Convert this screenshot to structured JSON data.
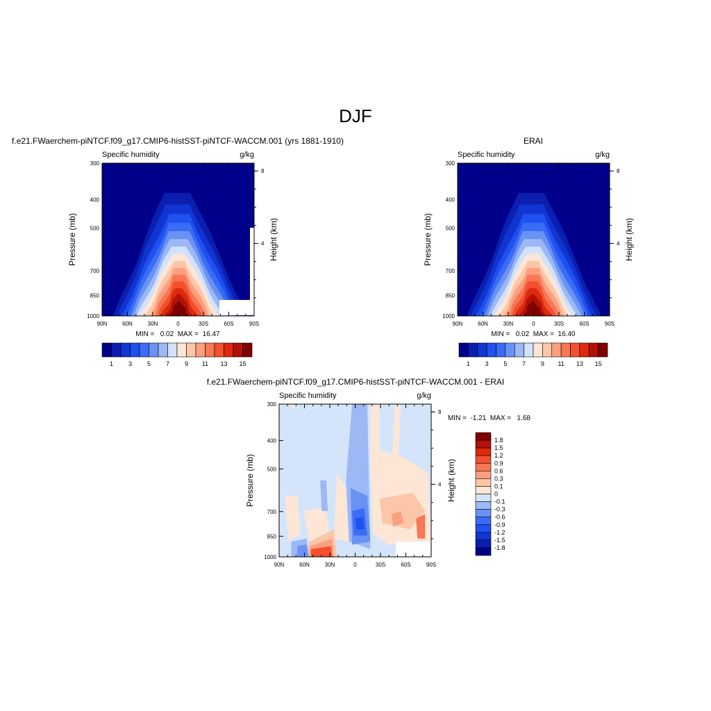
{
  "title": "DJF",
  "chart_data": [
    {
      "type": "heatmap",
      "title": "f.e21.FWaerchem-piNTCF.f09_g17.CMIP6-histSST-piNTCF-WACCM.001 (yrs 1881-1910)",
      "left_label": "Specific humidity",
      "right_label": "g/kg",
      "ylabel": "Pressure (mb)",
      "y2label": "Height (km)",
      "x_ticks": [
        "90N",
        "60N",
        "30N",
        "0",
        "30S",
        "60S",
        "90S"
      ],
      "y_ticks": [
        "300",
        "400",
        "500",
        "700",
        "850",
        "1000"
      ],
      "y_tick_values": [
        300,
        400,
        500,
        700,
        850,
        1000
      ],
      "y2_ticks": [
        "8",
        "4"
      ],
      "y2_tick_values": [
        8,
        4
      ],
      "stats": "MIN =   0.02  MAX =  16.47",
      "min": 0.02,
      "max": 16.47,
      "colorbar_labels": [
        "1",
        "3",
        "5",
        "7",
        "9",
        "11",
        "13",
        "15"
      ],
      "colorbar_levels": [
        1,
        2,
        3,
        4,
        5,
        6,
        7,
        8,
        9,
        10,
        11,
        12,
        13,
        14,
        15
      ],
      "peak_value": 16.47
    },
    {
      "type": "heatmap",
      "title": "ERAI",
      "left_label": "Specific humidity",
      "right_label": "g/kg",
      "ylabel": "Pressure (mb)",
      "y2label": "Height (km)",
      "x_ticks": [
        "90N",
        "60N",
        "30N",
        "0",
        "30S",
        "60S",
        "90S"
      ],
      "y_ticks": [
        "300",
        "400",
        "500",
        "700",
        "850",
        "1000"
      ],
      "y_tick_values": [
        300,
        400,
        500,
        700,
        850,
        1000
      ],
      "y2_ticks": [
        "8",
        "4"
      ],
      "y2_tick_values": [
        8,
        4
      ],
      "stats": "MIN =   0.02  MAX =  16.40",
      "min": 0.02,
      "max": 16.4,
      "colorbar_labels": [
        "1",
        "3",
        "5",
        "7",
        "9",
        "11",
        "13",
        "15"
      ],
      "colorbar_levels": [
        1,
        2,
        3,
        4,
        5,
        6,
        7,
        8,
        9,
        10,
        11,
        12,
        13,
        14,
        15
      ],
      "peak_value": 16.4
    },
    {
      "type": "heatmap",
      "title": "f.e21.FWaerchem-piNTCF.f09_g17.CMIP6-histSST-piNTCF-WACCM.001 - ERAI",
      "left_label": "Specific humidity",
      "right_label": "g/kg",
      "ylabel": "Pressure (mb)",
      "y2label": "Height (km)",
      "x_ticks": [
        "90N",
        "60N",
        "30N",
        "0",
        "30S",
        "60S",
        "90S"
      ],
      "y_ticks": [
        "300",
        "400",
        "500",
        "700",
        "850",
        "1000"
      ],
      "y_tick_values": [
        300,
        400,
        500,
        700,
        850,
        1000
      ],
      "y2_ticks": [
        "8",
        "4"
      ],
      "y2_tick_values": [
        8,
        4
      ],
      "stats": "MIN =  -1.21  MAX =   1.68",
      "min": -1.21,
      "max": 1.68,
      "colorbar_labels": [
        "1.8",
        "1.5",
        "1.2",
        "0.9",
        "0.6",
        "0.3",
        "0.1",
        "0",
        "-0.1",
        "-0.3",
        "-0.6",
        "-0.9",
        "-1.2",
        "-1.5",
        "-1.8"
      ],
      "colorbar_levels": [
        1.8,
        1.5,
        1.2,
        0.9,
        0.6,
        0.3,
        0.1,
        0,
        -0.1,
        -0.3,
        -0.6,
        -0.9,
        -1.2,
        -1.5,
        -1.8
      ]
    }
  ],
  "colors": {
    "seq": [
      "#00008b",
      "#0a1fb0",
      "#1035d0",
      "#1f50f0",
      "#3a6cf5",
      "#6a92f5",
      "#9cb8f5",
      "#d2e2fb",
      "#fde6d6",
      "#fcc7a8",
      "#fba07e",
      "#f87755",
      "#f2502f",
      "#dd2a0c",
      "#b21206",
      "#800000"
    ],
    "div": [
      "#00008b",
      "#0a1fb0",
      "#1035d0",
      "#1f50f0",
      "#3a6cf5",
      "#6a92f5",
      "#9cb8f5",
      "#d4e5fb",
      "#fde6d6",
      "#fcc7a8",
      "#fba07e",
      "#f87755",
      "#f2502f",
      "#dd2a0c",
      "#b21206",
      "#800000"
    ]
  }
}
